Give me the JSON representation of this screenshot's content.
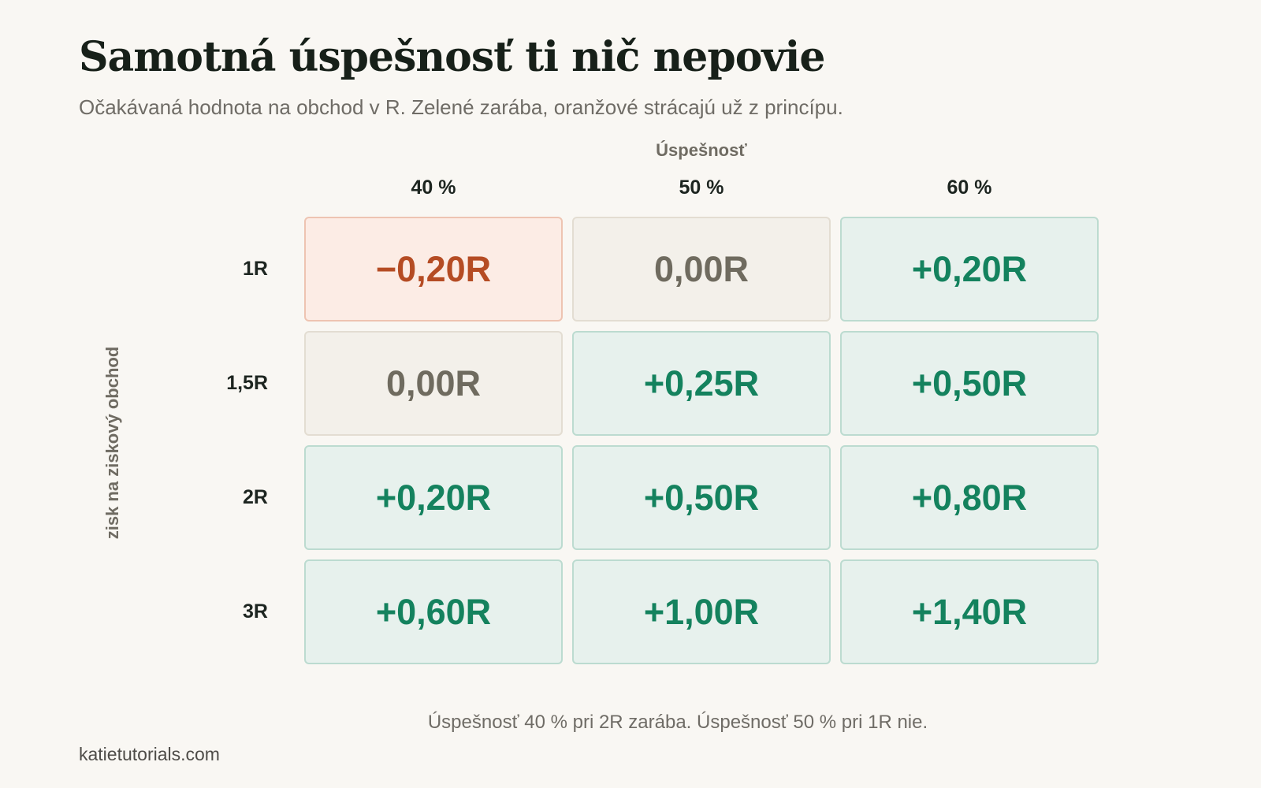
{
  "title": "Samotná úspešnosť ti nič nepovie",
  "subtitle": "Očakávaná hodnota na obchod v R. Zelené zarába, oranžové strácajú už z princípu.",
  "note": "Úspešnosť 40 % pri 2R zarába. Úspešnosť 50 % pri 1R nie.",
  "footer": "katietutorials.com",
  "colors": {
    "negative": "#b54c24",
    "neutral": "#6f6b5f",
    "positive": "#14825e"
  },
  "chart_data": {
    "type": "heatmap",
    "x_title": "Úspešnosť",
    "y_title": "zisk na ziskový obchod",
    "columns": [
      "40 %",
      "50 %",
      "60 %"
    ],
    "rows": [
      "1R",
      "1,5R",
      "2R",
      "3R"
    ],
    "values": [
      [
        -0.2,
        0.0,
        0.2
      ],
      [
        0.0,
        0.25,
        0.5
      ],
      [
        0.2,
        0.5,
        0.8
      ],
      [
        0.6,
        1.0,
        1.4
      ]
    ],
    "labels": [
      [
        "−0,20R",
        "0,00R",
        "+0,20R"
      ],
      [
        "0,00R",
        "+0,25R",
        "+0,50R"
      ],
      [
        "+0,20R",
        "+0,50R",
        "+0,80R"
      ],
      [
        "+0,60R",
        "+1,00R",
        "+1,40R"
      ]
    ]
  }
}
